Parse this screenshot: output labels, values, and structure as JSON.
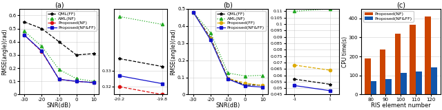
{
  "chart_data": [
    {
      "type": "line",
      "title": "(a)",
      "xlabel": "SNR(dB)",
      "ylabel": "RMSE(angle)(rad)",
      "x": [
        -30,
        -20,
        -10,
        0,
        10
      ],
      "series": [
        {
          "name": "QML(FF)",
          "color": "#000000",
          "marker": "star",
          "line_style": "dashed",
          "values": [
            0.55,
            0.5,
            0.4,
            0.3,
            0.31
          ]
        },
        {
          "name": "AML(NF)",
          "color": "#22aa22",
          "marker": "triangle",
          "line_style": "dotted",
          "values": [
            0.48,
            0.365,
            0.19,
            0.12,
            0.1
          ]
        },
        {
          "name": "Proposed(NF)",
          "color": "#dd1111",
          "marker": "circle",
          "line_style": "dashed",
          "values": [
            0.45,
            0.325,
            0.115,
            0.1,
            0.09
          ]
        },
        {
          "name": "Proposed(NF&FF)",
          "color": "#1111cc",
          "marker": "square",
          "line_style": "solid",
          "values": [
            0.45,
            0.33,
            0.115,
            0.1,
            0.09
          ]
        }
      ],
      "xlim": [
        -33,
        13
      ],
      "xticks": [
        -30,
        -20,
        -10,
        0,
        10
      ],
      "ylim": [
        0,
        0.65
      ],
      "yticks": [
        0,
        0.1,
        0.2,
        0.3,
        0.4,
        0.5,
        0.6
      ],
      "grid": true,
      "legend": "upper right"
    },
    {
      "type": "line",
      "x": [
        -20.2,
        -19.8
      ],
      "series": [
        {
          "name": "QML(FF)",
          "color": "#000000",
          "marker": "star",
          "line_style": "dashed",
          "values": [
            0.338,
            0.333
          ]
        },
        {
          "name": "AML(NF)",
          "color": "#22aa22",
          "marker": "triangle",
          "line_style": "dotted",
          "values": [
            0.365,
            0.36
          ]
        },
        {
          "name": "Proposed(NF)",
          "color": "#dd1111",
          "marker": "circle",
          "line_style": "dashed",
          "values": [
            0.32,
            0.315
          ]
        },
        {
          "name": "Proposed(NF&FF)",
          "color": "#1111cc",
          "marker": "square",
          "line_style": "solid",
          "values": [
            0.327,
            0.322
          ]
        }
      ],
      "xlim": [
        -20.25,
        -19.75
      ],
      "xticks": [
        -20.2,
        -19.8
      ],
      "ylim": [
        0.315,
        0.37
      ],
      "yticks": [
        0.32,
        0.33
      ],
      "grid": true
    },
    {
      "type": "line",
      "title": "(b)",
      "xlabel": "SNR(dB)",
      "ylabel": "RMSE(angle)(rad)",
      "x": [
        -30,
        -20,
        -10,
        0,
        10
      ],
      "series": [
        {
          "name": "QML(FF)",
          "color": "#000000",
          "marker": "star",
          "line_style": "dashed",
          "values": [
            0.48,
            0.33,
            0.095,
            0.055,
            0.055
          ]
        },
        {
          "name": "AML(NF)",
          "color": "#22aa22",
          "marker": "triangle",
          "line_style": "dotted",
          "values": [
            0.48,
            0.36,
            0.125,
            0.108,
            0.112
          ]
        },
        {
          "name": "Proposed(FF)",
          "color": "#ddaa00",
          "marker": "circle",
          "line_style": "dashed",
          "values": [
            0.48,
            0.325,
            0.093,
            0.067,
            0.052
          ]
        },
        {
          "name": "Proposed(NF&FF)",
          "color": "#1111cc",
          "marker": "square",
          "line_style": "solid",
          "values": [
            0.48,
            0.318,
            0.09,
            0.05,
            0.043
          ]
        }
      ],
      "xlim": [
        -33,
        13
      ],
      "xticks": [
        -30,
        -20,
        -10,
        0,
        10
      ],
      "ylim": [
        0,
        0.5
      ],
      "yticks": [
        0,
        0.1,
        0.2,
        0.3,
        0.4,
        0.5
      ],
      "grid": true,
      "legend": "upper right"
    },
    {
      "type": "line",
      "x": [
        -1,
        1
      ],
      "series": [
        {
          "name": "QML(FF)",
          "color": "#000000",
          "marker": "star",
          "line_style": "dashed",
          "values": [
            0.057,
            0.053
          ]
        },
        {
          "name": "AML(NF)",
          "color": "#22aa22",
          "marker": "triangle",
          "line_style": "dotted",
          "values": [
            0.11,
            0.112
          ]
        },
        {
          "name": "Proposed(FF)",
          "color": "#ddaa00",
          "marker": "circle",
          "line_style": "dashed",
          "values": [
            0.068,
            0.064
          ]
        },
        {
          "name": "Proposed(NF&FF)",
          "color": "#1111cc",
          "marker": "square",
          "line_style": "solid",
          "values": [
            0.052,
            0.048
          ]
        }
      ],
      "xlim": [
        -1.5,
        1.5
      ],
      "xticks": [
        -1,
        1
      ],
      "ylim": [
        0.045,
        0.112
      ],
      "yticks": [
        0.045,
        0.05,
        0.055,
        0.06,
        0.065,
        0.07,
        0.075,
        0.08,
        0.085,
        0.09,
        0.095,
        0.1,
        0.105,
        0.11
      ],
      "grid": true
    },
    {
      "type": "bar",
      "title": "(c)",
      "xlabel": "RIS element number",
      "ylabel": "CPU time(s)",
      "categories": [
        "80",
        "90",
        "100",
        "110",
        "120"
      ],
      "series": [
        {
          "name": "Proposed(NF)",
          "color": "#cc4400",
          "values": [
            190,
            235,
            318,
            365,
            410
          ]
        },
        {
          "name": "Proposed(NF&FF)",
          "color": "#1155aa",
          "values": [
            70,
            82,
            115,
            120,
            143
          ]
        }
      ],
      "ylim": [
        0,
        450
      ],
      "yticks": [
        0,
        100,
        200,
        300,
        400
      ],
      "grid": "y",
      "legend": "upper left"
    }
  ]
}
